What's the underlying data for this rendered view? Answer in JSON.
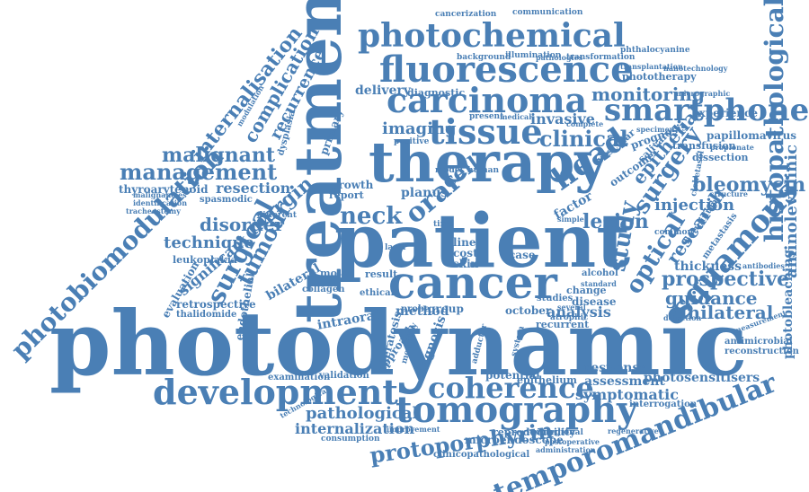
{
  "colors": {
    "primary": "#4a7fb5",
    "dark": "#2f5f8f",
    "background": "#ffffff"
  },
  "words": [
    "photodynamic",
    "patient",
    "treatment",
    "therapy",
    "cancer",
    "fluorescence",
    "photochemical",
    "carcinoma",
    "tissue",
    "smartphone",
    "photobiomodulation",
    "development",
    "tomography",
    "coherence",
    "temporomandibular",
    "squamous",
    "histopathological",
    "management",
    "head",
    "neck",
    "oral",
    "surgical",
    "tumour",
    "optical",
    "study",
    "clinical",
    "lesion",
    "surgery",
    "injection",
    "bleomycin",
    "prospective",
    "guidance",
    "unilateral",
    "internalisation",
    "complication",
    "recurrence",
    "malignant",
    "disorder",
    "technique",
    "margin",
    "imaging",
    "monitoring",
    "invasive",
    "epithelial",
    "research",
    "protoporphyrin",
    "pathological",
    "internalization",
    "symptomatic",
    "assessment",
    "photosensitisers",
    "response",
    "aminolevulinic",
    "photobleaching",
    "leukoplakia",
    "thyroarytenoid",
    "resection",
    "retrospective",
    "thalidomide",
    "evaluation",
    "significant",
    "bilateral",
    "endothelial",
    "intraoral",
    "method",
    "group",
    "analysis",
    "microendoscope",
    "reproducibility",
    "clinicopathological",
    "consumption",
    "examination",
    "validation",
    "potential",
    "epithelium",
    "thickness",
    "papillomavirus",
    "transfusion",
    "antimicrobial",
    "reconstruction",
    "interrogation",
    "diagnosis",
    "delivery",
    "diagnostic",
    "approach",
    "collagen",
    "planus",
    "molar",
    "growth",
    "report",
    "line",
    "cost",
    "skin",
    "case",
    "probe",
    "ethical",
    "result",
    "october",
    "recurrent",
    "change",
    "disease",
    "alcohol",
    "studies",
    "dissection",
    "botulinum",
    "metastasis",
    "experience",
    "prognosis",
    "outcome",
    "salivary",
    "vascular",
    "factor",
    "cell",
    "cancerization",
    "communication",
    "phthalocyanine",
    "transformation",
    "background",
    "illumination",
    "pathologies",
    "nanotechnology",
    "phototherapy",
    "transplantation",
    "micrographic",
    "present",
    "medical",
    "complete",
    "specimen",
    "positive",
    "primary",
    "dysplasia",
    "modulation",
    "malignancies",
    "identification",
    "tracheostomy",
    "spasmodic",
    "different",
    "keratosis",
    "regenerative",
    "locoregional",
    "postoperative",
    "administration",
    "improvement",
    "technological",
    "adductor",
    "mortality",
    "system",
    "atrophic",
    "clobetasol",
    "common",
    "standard",
    "antibodies",
    "propionate",
    "measurement",
    "detection",
    "structure",
    "several",
    "simple",
    "model",
    "time",
    "laser",
    "human"
  ]
}
